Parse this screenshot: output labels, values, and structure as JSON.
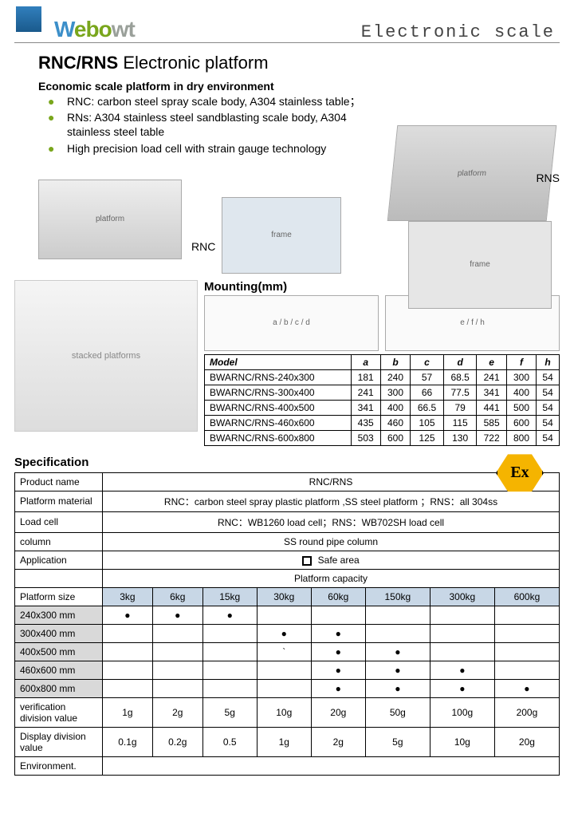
{
  "header": {
    "logo_parts": {
      "w": "W",
      "ebo": "ebo",
      "wt": "wt"
    },
    "right_text": "Electronic scale"
  },
  "title": {
    "strong": "RNC/RNS",
    "rest": " Electronic platform"
  },
  "subtitle": "Economic scale platform in dry environment",
  "bullets": [
    "RNC: carbon steel spray scale body, A304 stainless table；",
    "RNs: A304 stainless steel sandblasting scale body, A304 stainless steel table",
    "High precision load cell with strain gauge technology"
  ],
  "labels": {
    "rns": "RNS",
    "rnc": "RNC"
  },
  "mounting": {
    "title": "Mounting(mm)",
    "headers": [
      "Model",
      "a",
      "b",
      "c",
      "d",
      "e",
      "f",
      "h"
    ],
    "rows": [
      [
        "BWARNC/RNS-240x300",
        "181",
        "240",
        "57",
        "68.5",
        "241",
        "300",
        "54"
      ],
      [
        "BWARNC/RNS-300x400",
        "241",
        "300",
        "66",
        "77.5",
        "341",
        "400",
        "54"
      ],
      [
        "BWARNC/RNS-400x500",
        "341",
        "400",
        "66.5",
        "79",
        "441",
        "500",
        "54"
      ],
      [
        "BWARNC/RNS-460x600",
        "435",
        "460",
        "105",
        "115",
        "585",
        "600",
        "54"
      ],
      [
        "BWARNC/RNS-600x800",
        "503",
        "600",
        "125",
        "130",
        "722",
        "800",
        "54"
      ]
    ]
  },
  "spec_title": "Specification",
  "ex_badge": "Ex",
  "spec_rows": [
    {
      "label": "Product name",
      "value": "RNC/RNS"
    },
    {
      "label": "Platform material",
      "value": "RNC：carbon steel spray  plastic platform ,SS steel platform ；RNS：all 304ss"
    },
    {
      "label": "Load cell",
      "value": "RNC：WB1260 load cell；RNS：WB702SH load cell"
    },
    {
      "label": "column",
      "value": "SS round pipe column"
    },
    {
      "label": "Application",
      "value": "Safe area",
      "safebox": true
    }
  ],
  "capacity_header": "Platform capacity",
  "capacity": {
    "size_label": "Platform size",
    "caps": [
      "3kg",
      "6kg",
      "15kg",
      "30kg",
      "60kg",
      "150kg",
      "300kg",
      "600kg"
    ],
    "rows": [
      {
        "size": "240x300 mm",
        "dots": [
          1,
          1,
          1,
          0,
          0,
          0,
          0,
          0
        ]
      },
      {
        "size": "300x400 mm",
        "dots": [
          0,
          0,
          0,
          1,
          1,
          0,
          0,
          0
        ]
      },
      {
        "size": "400x500 mm",
        "dots": [
          0,
          0,
          0,
          0,
          1,
          1,
          0,
          0
        ],
        "tick3": "`"
      },
      {
        "size": "460x600 mm",
        "dots": [
          0,
          0,
          0,
          0,
          1,
          1,
          1,
          0
        ]
      },
      {
        "size": "600x800 mm",
        "dots": [
          0,
          0,
          0,
          0,
          1,
          1,
          1,
          1
        ]
      }
    ],
    "verification": {
      "label": "verification division value",
      "vals": [
        "1g",
        "2g",
        "5g",
        "10g",
        "20g",
        "50g",
        "100g",
        "200g"
      ]
    },
    "display": {
      "label": "Display division value",
      "vals": [
        "0.1g",
        "0.2g",
        "0.5",
        "1g",
        "2g",
        "5g",
        "10g",
        "20g"
      ]
    },
    "environment_label": "Environment."
  },
  "colors": {
    "accent_blue": "#317fbd",
    "accent_green": "#79a61c",
    "header_cap_bg": "#c8d7e6",
    "size_bg": "#d9d9d9",
    "ex_yellow": "#f5b400"
  }
}
